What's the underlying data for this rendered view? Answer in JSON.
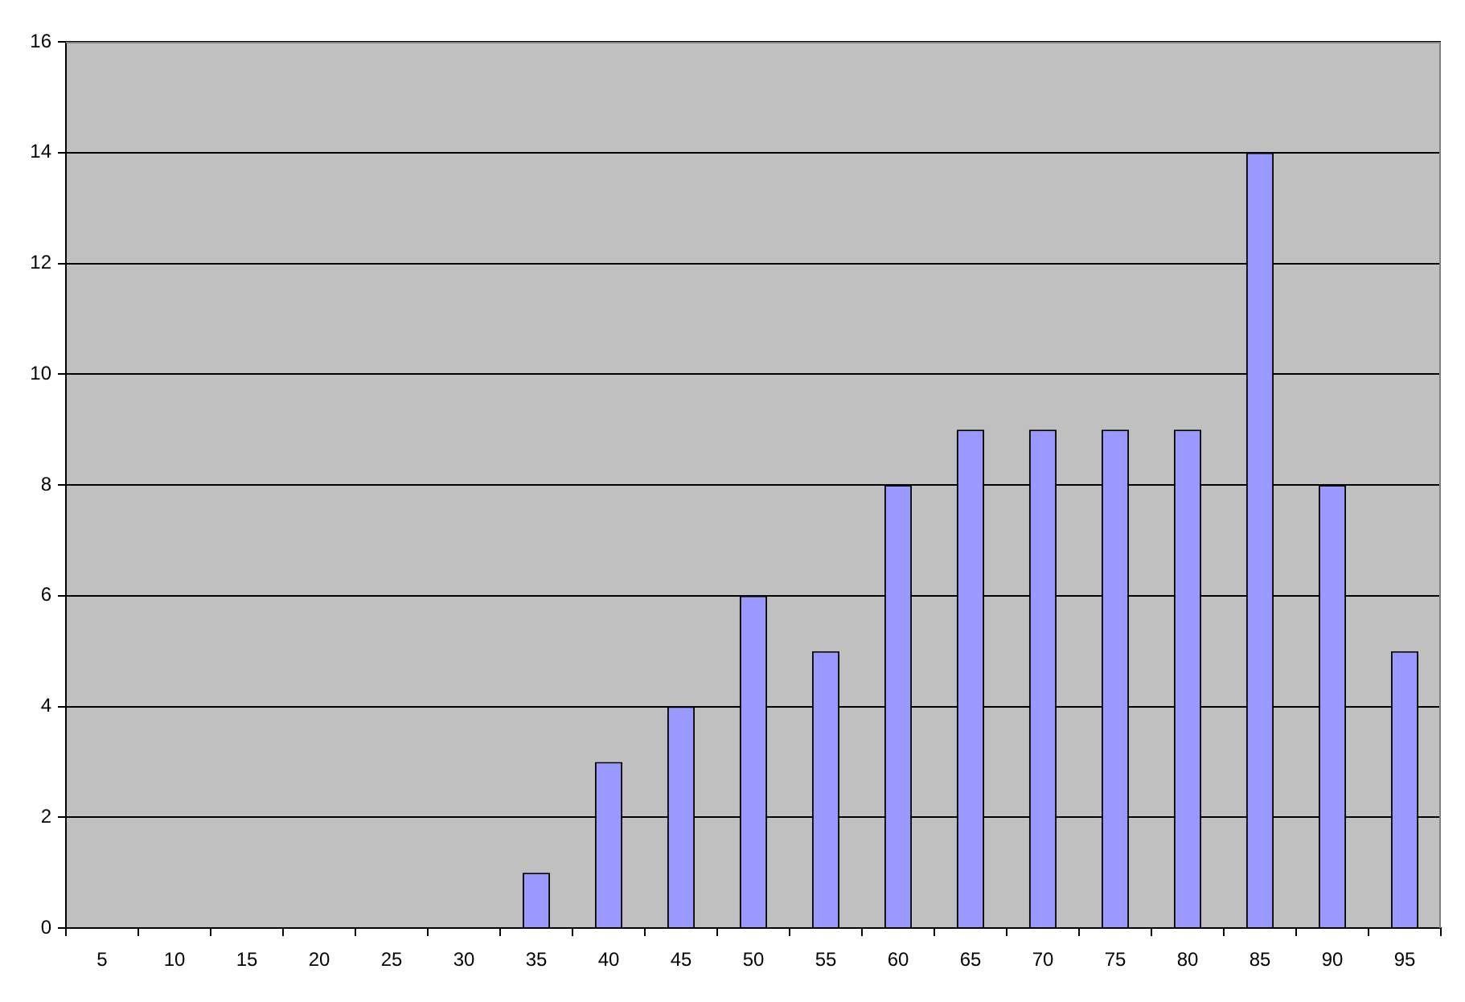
{
  "chart_data": {
    "type": "bar",
    "categories": [
      "5",
      "10",
      "15",
      "20",
      "25",
      "30",
      "35",
      "40",
      "45",
      "50",
      "55",
      "60",
      "65",
      "70",
      "75",
      "80",
      "85",
      "90",
      "95"
    ],
    "values": [
      0,
      0,
      0,
      0,
      0,
      0,
      1,
      3,
      4,
      6,
      5,
      8,
      9,
      9,
      9,
      9,
      14,
      8,
      5
    ],
    "color": "#9999ff",
    "ylim": [
      0,
      16
    ],
    "yticks": [
      0,
      2,
      4,
      6,
      8,
      10,
      12,
      14,
      16
    ],
    "grid": "y"
  }
}
